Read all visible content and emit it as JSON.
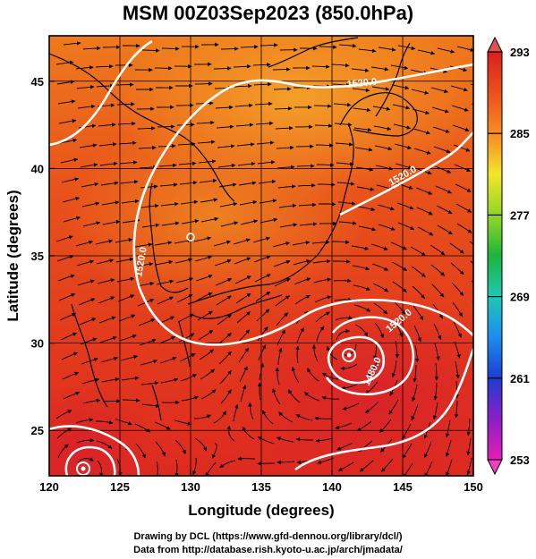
{
  "title": "MSM 00Z03Sep2023 (850.0hPa)",
  "x_axis": {
    "label": "Longitude (degrees)",
    "ticks": [
      "120",
      "125",
      "130",
      "135",
      "140",
      "145",
      "150"
    ]
  },
  "y_axis": {
    "label": "Latitude  (degrees)",
    "ticks": [
      "25",
      "30",
      "35",
      "40",
      "45"
    ]
  },
  "colorbar": {
    "ticks": [
      "293",
      "285",
      "277",
      "269",
      "261",
      "253"
    ]
  },
  "contours": {
    "labels": [
      "1520.0",
      "1520.0",
      "1520.0",
      "1480.0",
      "1520.0"
    ]
  },
  "footer": {
    "line1": "Drawing by DCL (https://www.gfd-dennou.org/library/dcl/)",
    "line2": "Data from http://database.rish.kyoto-u.ac.jp/arch/jmadata/"
  },
  "chart_data": {
    "type": "heatmap",
    "title": "MSM 00Z03Sep2023 (850.0hPa)",
    "xlabel": "Longitude (degrees)",
    "ylabel": "Latitude  (degrees)",
    "xlim": [
      120,
      150
    ],
    "ylim": [
      22.4,
      47.6
    ],
    "x_ticks": [
      120,
      125,
      130,
      135,
      140,
      145,
      150
    ],
    "y_ticks": [
      25,
      30,
      35,
      40,
      45
    ],
    "colorbar_range": [
      253,
      293
    ],
    "colorbar_ticks": [
      293,
      285,
      277,
      269,
      261,
      253
    ],
    "grid": true,
    "contour_labels": [
      "1520.0",
      "1520.0",
      "1520.0",
      "1480.0",
      "1520.0"
    ],
    "features": {
      "low_centers": [
        {
          "lon": 141.1,
          "lat": 30.1
        },
        {
          "lon": 122.4,
          "lat": 22.8
        }
      ]
    }
  }
}
